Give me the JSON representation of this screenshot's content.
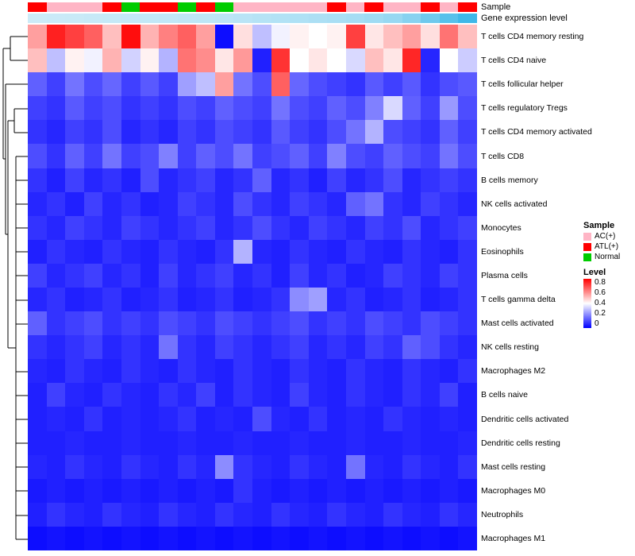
{
  "annotations": {
    "sample_label": "Sample",
    "expression_label": "Gene expression level"
  },
  "legend": {
    "sample": {
      "title": "Sample",
      "items": [
        {
          "label": "AC(+)",
          "color": "#FFB5C5"
        },
        {
          "label": "ATL(+)",
          "color": "#FF0000"
        },
        {
          "label": "Normal",
          "color": "#00CC00"
        }
      ]
    },
    "level": {
      "title": "Level",
      "ticks": [
        "0.8",
        "0.6",
        "0.4",
        "0.2",
        "0"
      ],
      "gradient": [
        "#FF0000",
        "#FFFFFF",
        "#0000FF"
      ]
    }
  },
  "chart_data": {
    "type": "heatmap",
    "title": "",
    "xlabel": "",
    "ylabel": "",
    "legend_position": "right",
    "value_range": [
      0,
      0.8
    ],
    "colorscale": {
      "low": "#0000FF",
      "mid": "#FFFFFF",
      "high": "#FF0000",
      "midpoint": 0.4
    },
    "rows": [
      "T cells CD4 memory resting",
      "T cells CD4 naive",
      "T cells follicular helper",
      "T cells regulatory  Tregs",
      "T cells CD4 memory activated",
      "T cells CD8",
      "B cells memory",
      "NK cells activated",
      "Monocytes",
      "Eosinophils",
      "Plasma cells",
      "T cells gamma delta",
      "Mast cells activated",
      "NK cells resting",
      "Macrophages M2",
      "B cells naive",
      "Dendritic cells activated",
      "Dendritic cells resting",
      "Mast cells resting",
      "Macrophages M0",
      "Neutrophils",
      "Macrophages M1"
    ],
    "values": [
      [
        0.55,
        0.75,
        0.7,
        0.65,
        0.5,
        0.78,
        0.52,
        0.6,
        0.65,
        0.55,
        0.02,
        0.45,
        0.3,
        0.38,
        0.42,
        0.4,
        0.42,
        0.7,
        0.44,
        0.5,
        0.55,
        0.45,
        0.62,
        0.5
      ],
      [
        0.5,
        0.3,
        0.42,
        0.38,
        0.52,
        0.33,
        0.42,
        0.28,
        0.62,
        0.58,
        0.44,
        0.56,
        0.05,
        0.72,
        0.4,
        0.44,
        0.4,
        0.34,
        0.5,
        0.44,
        0.74,
        0.06,
        0.4,
        0.32
      ],
      [
        0.15,
        0.1,
        0.18,
        0.12,
        0.16,
        0.1,
        0.14,
        0.1,
        0.25,
        0.3,
        0.55,
        0.18,
        0.12,
        0.65,
        0.16,
        0.12,
        0.1,
        0.08,
        0.14,
        0.1,
        0.14,
        0.08,
        0.12,
        0.14
      ],
      [
        0.1,
        0.08,
        0.14,
        0.1,
        0.12,
        0.08,
        0.1,
        0.08,
        0.12,
        0.1,
        0.15,
        0.12,
        0.1,
        0.18,
        0.12,
        0.1,
        0.15,
        0.12,
        0.2,
        0.34,
        0.15,
        0.1,
        0.24,
        0.12
      ],
      [
        0.08,
        0.06,
        0.1,
        0.08,
        0.12,
        0.06,
        0.08,
        0.06,
        0.1,
        0.08,
        0.12,
        0.1,
        0.08,
        0.14,
        0.1,
        0.08,
        0.12,
        0.18,
        0.28,
        0.12,
        0.1,
        0.08,
        0.15,
        0.1
      ],
      [
        0.12,
        0.08,
        0.15,
        0.1,
        0.18,
        0.1,
        0.12,
        0.2,
        0.1,
        0.15,
        0.12,
        0.18,
        0.1,
        0.12,
        0.15,
        0.1,
        0.2,
        0.12,
        0.1,
        0.15,
        0.12,
        0.1,
        0.18,
        0.12
      ],
      [
        0.08,
        0.05,
        0.1,
        0.06,
        0.08,
        0.05,
        0.12,
        0.06,
        0.08,
        0.1,
        0.06,
        0.08,
        0.15,
        0.06,
        0.08,
        0.05,
        0.1,
        0.06,
        0.08,
        0.12,
        0.06,
        0.08,
        0.1,
        0.08
      ],
      [
        0.06,
        0.08,
        0.05,
        0.1,
        0.06,
        0.08,
        0.05,
        0.06,
        0.1,
        0.08,
        0.06,
        0.12,
        0.08,
        0.06,
        0.1,
        0.08,
        0.06,
        0.15,
        0.18,
        0.08,
        0.06,
        0.1,
        0.08,
        0.06
      ],
      [
        0.08,
        0.06,
        0.1,
        0.08,
        0.06,
        0.1,
        0.08,
        0.06,
        0.08,
        0.1,
        0.06,
        0.08,
        0.12,
        0.08,
        0.06,
        0.1,
        0.08,
        0.06,
        0.1,
        0.08,
        0.12,
        0.06,
        0.08,
        0.1
      ],
      [
        0.05,
        0.08,
        0.06,
        0.05,
        0.08,
        0.06,
        0.05,
        0.08,
        0.06,
        0.05,
        0.08,
        0.28,
        0.06,
        0.05,
        0.08,
        0.06,
        0.05,
        0.08,
        0.06,
        0.05,
        0.08,
        0.06,
        0.05,
        0.08
      ],
      [
        0.1,
        0.06,
        0.08,
        0.1,
        0.06,
        0.08,
        0.05,
        0.1,
        0.06,
        0.08,
        0.1,
        0.06,
        0.08,
        0.05,
        0.1,
        0.06,
        0.08,
        0.05,
        0.06,
        0.1,
        0.08,
        0.06,
        0.1,
        0.08
      ],
      [
        0.06,
        0.08,
        0.05,
        0.06,
        0.08,
        0.05,
        0.06,
        0.08,
        0.05,
        0.06,
        0.08,
        0.05,
        0.06,
        0.08,
        0.22,
        0.25,
        0.06,
        0.08,
        0.05,
        0.06,
        0.08,
        0.05,
        0.06,
        0.08
      ],
      [
        0.15,
        0.08,
        0.1,
        0.12,
        0.08,
        0.1,
        0.08,
        0.12,
        0.1,
        0.08,
        0.12,
        0.1,
        0.08,
        0.1,
        0.12,
        0.08,
        0.1,
        0.08,
        0.12,
        0.1,
        0.08,
        0.12,
        0.1,
        0.08
      ],
      [
        0.08,
        0.06,
        0.08,
        0.1,
        0.06,
        0.08,
        0.06,
        0.18,
        0.08,
        0.06,
        0.1,
        0.08,
        0.06,
        0.08,
        0.1,
        0.06,
        0.08,
        0.06,
        0.1,
        0.08,
        0.15,
        0.12,
        0.08,
        0.06
      ],
      [
        0.06,
        0.05,
        0.08,
        0.06,
        0.05,
        0.08,
        0.06,
        0.05,
        0.08,
        0.06,
        0.05,
        0.08,
        0.06,
        0.05,
        0.08,
        0.06,
        0.05,
        0.08,
        0.06,
        0.05,
        0.08,
        0.06,
        0.05,
        0.08
      ],
      [
        0.05,
        0.1,
        0.06,
        0.05,
        0.08,
        0.06,
        0.05,
        0.08,
        0.06,
        0.1,
        0.05,
        0.08,
        0.06,
        0.05,
        0.1,
        0.06,
        0.05,
        0.08,
        0.06,
        0.05,
        0.08,
        0.06,
        0.1,
        0.05
      ],
      [
        0.05,
        0.06,
        0.05,
        0.08,
        0.05,
        0.06,
        0.05,
        0.06,
        0.08,
        0.05,
        0.06,
        0.05,
        0.12,
        0.06,
        0.05,
        0.08,
        0.05,
        0.06,
        0.05,
        0.08,
        0.06,
        0.05,
        0.06,
        0.05
      ],
      [
        0.05,
        0.05,
        0.06,
        0.05,
        0.05,
        0.06,
        0.05,
        0.05,
        0.06,
        0.05,
        0.05,
        0.06,
        0.05,
        0.05,
        0.06,
        0.05,
        0.05,
        0.06,
        0.05,
        0.05,
        0.06,
        0.05,
        0.05,
        0.06
      ],
      [
        0.06,
        0.05,
        0.08,
        0.06,
        0.05,
        0.08,
        0.06,
        0.05,
        0.08,
        0.06,
        0.22,
        0.08,
        0.06,
        0.05,
        0.08,
        0.06,
        0.05,
        0.18,
        0.06,
        0.05,
        0.08,
        0.06,
        0.05,
        0.08
      ],
      [
        0.04,
        0.05,
        0.04,
        0.05,
        0.04,
        0.05,
        0.04,
        0.05,
        0.04,
        0.05,
        0.04,
        0.08,
        0.05,
        0.04,
        0.05,
        0.04,
        0.05,
        0.04,
        0.05,
        0.04,
        0.05,
        0.04,
        0.05,
        0.04
      ],
      [
        0.05,
        0.08,
        0.06,
        0.05,
        0.08,
        0.06,
        0.05,
        0.08,
        0.06,
        0.05,
        0.08,
        0.06,
        0.05,
        0.08,
        0.06,
        0.05,
        0.08,
        0.06,
        0.05,
        0.08,
        0.06,
        0.05,
        0.08,
        0.06
      ],
      [
        0.02,
        0.03,
        0.02,
        0.03,
        0.02,
        0.03,
        0.02,
        0.03,
        0.02,
        0.03,
        0.02,
        0.03,
        0.02,
        0.03,
        0.02,
        0.03,
        0.02,
        0.03,
        0.02,
        0.03,
        0.02,
        0.03,
        0.02,
        0.03
      ]
    ],
    "column_sample_groups": [
      "ATL(+)",
      "AC(+)",
      "AC(+)",
      "AC(+)",
      "ATL(+)",
      "Normal",
      "ATL(+)",
      "ATL(+)",
      "Normal",
      "ATL(+)",
      "Normal",
      "AC(+)",
      "AC(+)",
      "AC(+)",
      "AC(+)",
      "AC(+)",
      "ATL(+)",
      "AC(+)",
      "ATL(+)",
      "AC(+)",
      "AC(+)",
      "ATL(+)",
      "AC(+)",
      "ATL(+)"
    ],
    "sample_group_colors": {
      "AC(+)": "#FFB5C5",
      "ATL(+)": "#FF0000",
      "Normal": "#00CC00"
    },
    "gene_expression_level": [
      0.12,
      0.13,
      0.14,
      0.15,
      0.16,
      0.17,
      0.18,
      0.19,
      0.2,
      0.21,
      0.22,
      0.24,
      0.26,
      0.28,
      0.3,
      0.32,
      0.34,
      0.36,
      0.4,
      0.45,
      0.55,
      0.7,
      0.85,
      1.0
    ],
    "expression_colorscale": {
      "low": "#DFF2FA",
      "high": "#3FB8E8"
    }
  }
}
